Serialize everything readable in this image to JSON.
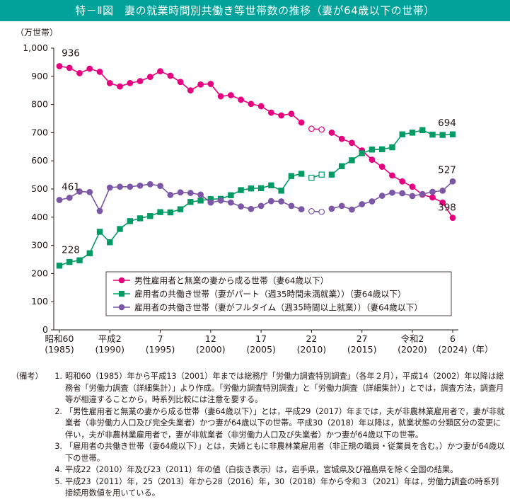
{
  "title": "特－Ⅱ図　妻の就業時間別共働き等世帯数の推移（妻が64歳以下の世帯）",
  "notes_heading": "（備考）",
  "notes": [
    {
      "num": "1.",
      "text": "昭和60（1985）年から平成13（2001）年までは総務庁「労働力調査特別調査」（各年２月），平成14（2002）年以降は総務省「労働力調査（詳細集計）」より作成。「労働力調査特別調査」と「労働力調査（詳細集計）」とでは，調査方法，調査月等が相違することから，時系列比較には注意を要する。"
    },
    {
      "num": "2.",
      "text": "「男性雇用者と無業の妻から成る世帯（妻64歳以下）」とは，平成29（2017）年までは，夫が非農林業雇用者で，妻が非就業者（非労働力人口及び完全失業者）かつ妻が64歳以下の世帯。平成30（2018）年以降は，就業状態の分類区分の変更に伴い，夫が非農林業雇用者で，妻が非就業者（非労働力人口及び失業者）かつ妻が64歳以下の世帯。"
    },
    {
      "num": "3.",
      "text": "「雇用者の共働き世帯（妻64歳以下）」とは，夫婦ともに非農林業雇用者（非正規の職員・従業員を含む。）かつ妻が64歳以下の世帯。"
    },
    {
      "num": "4.",
      "text": "平成22（2010）年及び23（2011）年の値（白抜き表示）は，岩手県，宮城県及び福島県を除く全国の結果。"
    },
    {
      "num": "5.",
      "text": "平成23（2011）年，25（2013）年から28（2016）年，30（2018）年から令和３（2021）年は，労働力調査の時系列接続用数値を用いている。"
    }
  ],
  "chart_data": {
    "type": "line",
    "ylabel": "（万世帯）",
    "xlabel_unit": "（年）",
    "ylim": [
      0,
      1000
    ],
    "yticks": [
      0,
      100,
      200,
      300,
      400,
      500,
      600,
      700,
      800,
      900,
      1000
    ],
    "ytick_labels": [
      "0",
      "100",
      "200",
      "300",
      "400",
      "500",
      "600",
      "700",
      "800",
      "900",
      "1,000"
    ],
    "x": [
      1985,
      1986,
      1987,
      1988,
      1989,
      1990,
      1991,
      1992,
      1993,
      1994,
      1995,
      1996,
      1997,
      1998,
      1999,
      2000,
      2001,
      2002,
      2003,
      2004,
      2005,
      2006,
      2007,
      2008,
      2009,
      2010,
      2011,
      2012,
      2013,
      2014,
      2015,
      2016,
      2017,
      2018,
      2019,
      2020,
      2021,
      2022,
      2023,
      2024
    ],
    "xticks": [
      {
        "year": 1985,
        "era": "昭和60",
        "western": "(1985)"
      },
      {
        "year": 1990,
        "era": "平成2",
        "western": "(1990)"
      },
      {
        "year": 1995,
        "era": "7",
        "western": "(1995)"
      },
      {
        "year": 2000,
        "era": "12",
        "western": "(2000)"
      },
      {
        "year": 2005,
        "era": "17",
        "western": "(2005)"
      },
      {
        "year": 2010,
        "era": "22",
        "western": "(2010)"
      },
      {
        "year": 2015,
        "era": "27",
        "western": "(2015)"
      },
      {
        "year": 2020,
        "era": "令和2",
        "western": "(2020)"
      },
      {
        "year": 2024,
        "era": "6",
        "western": "(2024)"
      }
    ],
    "open_marker_years": [
      2010,
      2011
    ],
    "legend_position": "bottom-right",
    "series": [
      {
        "name": "男性雇用者と無業の妻から成る世帯（妻64歳以下）",
        "color": "#e4007f",
        "marker": "circle",
        "values": [
          936,
          930,
          911,
          927,
          916,
          876,
          864,
          876,
          883,
          898,
          918,
          902,
          880,
          850,
          871,
          873,
          829,
          833,
          817,
          802,
          794,
          771,
          761,
          767,
          736,
          714,
          711,
          700,
          678,
          664,
          637,
          604,
          579,
          548,
          527,
          508,
          480,
          470,
          452,
          398
        ],
        "end_labels": [
          {
            "year": 1985,
            "text": "936"
          },
          {
            "year": 2024,
            "text": "398"
          }
        ]
      },
      {
        "name": "雇用者の共働き世帯（妻がパート（週35時間未満就業））（妻64歳以下）",
        "color": "#009b63",
        "marker": "square",
        "values": [
          228,
          241,
          247,
          272,
          348,
          311,
          358,
          386,
          396,
          404,
          418,
          417,
          428,
          454,
          459,
          464,
          465,
          478,
          496,
          502,
          503,
          513,
          494,
          546,
          554,
          540,
          551,
          551,
          581,
          602,
          627,
          640,
          641,
          648,
          694,
          700,
          709,
          693,
          692,
          694
        ],
        "end_labels": [
          {
            "year": 1985,
            "text": "228"
          },
          {
            "year": 2024,
            "text": "694"
          }
        ]
      },
      {
        "name": "雇用者の共働き世帯（妻がフルタイム（週35時間以上就業））（妻64歳以下）",
        "color": "#7c57a6",
        "marker": "circle",
        "values": [
          461,
          469,
          491,
          489,
          422,
          505,
          508,
          508,
          512,
          517,
          511,
          479,
          488,
          486,
          480,
          452,
          459,
          452,
          438,
          429,
          440,
          457,
          456,
          440,
          428,
          421,
          419,
          430,
          440,
          427,
          446,
          456,
          476,
          487,
          485,
          475,
          482,
          490,
          494,
          527
        ],
        "end_labels": [
          {
            "year": 1985,
            "text": "461"
          },
          {
            "year": 2024,
            "text": "527"
          }
        ]
      }
    ]
  }
}
